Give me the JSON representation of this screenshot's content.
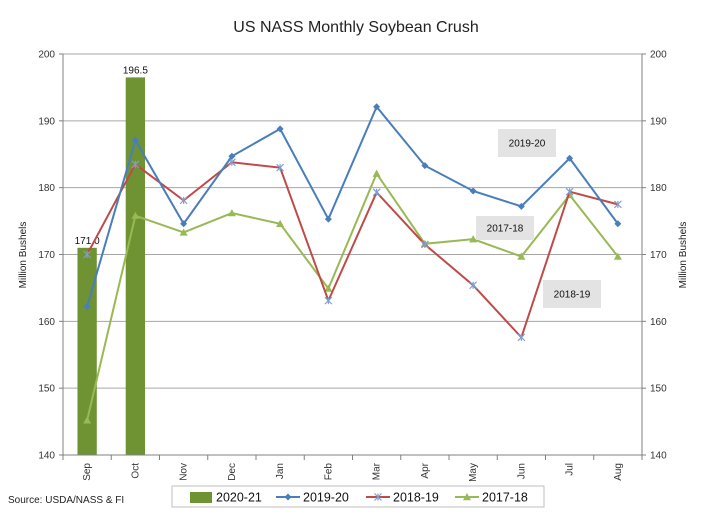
{
  "chart_data": {
    "type": "bar+line",
    "title": "US NASS Monthly Soybean Crush",
    "ylabel_left": "Million Bushels",
    "ylabel_right": "Million Bushels",
    "ylim": [
      140,
      200
    ],
    "yticks": [
      140,
      150,
      160,
      170,
      180,
      190,
      200
    ],
    "categories": [
      "Sep",
      "Oct",
      "Nov",
      "Dec",
      "Jan",
      "Feb",
      "Mar",
      "Apr",
      "May",
      "Jun",
      "Jul",
      "Aug"
    ],
    "grid": true,
    "legend_position": "bottom",
    "bar_series": {
      "name": "2020-21",
      "color": "#6f9233",
      "values": [
        171.0,
        196.5
      ],
      "labels": [
        "171.0",
        "196.5"
      ]
    },
    "series": [
      {
        "name": "2019-20",
        "color": "#4a7ebb",
        "marker": "diamond",
        "values": [
          162.2,
          187.1,
          174.6,
          184.7,
          188.8,
          175.3,
          192.1,
          183.3,
          179.5,
          177.2,
          184.4,
          174.6
        ]
      },
      {
        "name": "2018-19",
        "color": "#be4b48",
        "marker": "star",
        "values": [
          170.0,
          183.5,
          178.1,
          183.8,
          183.0,
          163.1,
          179.3,
          171.5,
          165.4,
          157.6,
          179.4,
          177.5
        ]
      },
      {
        "name": "2017-18",
        "color": "#98b954",
        "marker": "triangle",
        "values": [
          145.2,
          175.8,
          173.3,
          176.2,
          174.6,
          164.9,
          182.1,
          171.6,
          172.3,
          169.7,
          178.9,
          169.7
        ]
      }
    ],
    "annotations": [
      {
        "text": "2019-20"
      },
      {
        "text": "2017-18"
      },
      {
        "text": "2018-19"
      }
    ],
    "source": "Source: USDA/NASS & FI"
  }
}
